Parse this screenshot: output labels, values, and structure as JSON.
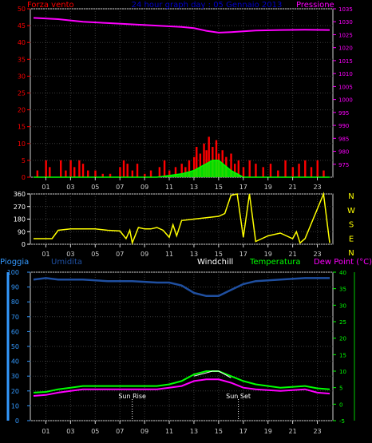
{
  "chart_data": [
    {
      "type": "bar",
      "title": "24 hour graph day : 05 Gennaio 2013",
      "left_axis_label": "Forza vento",
      "right_axis_label": "Pressione",
      "left_ylim": [
        0,
        50
      ],
      "left_ticks": [
        0,
        5,
        10,
        15,
        20,
        25,
        30,
        35,
        40,
        45,
        50
      ],
      "right_ylim": [
        970,
        1035
      ],
      "right_ticks": [
        975,
        980,
        985,
        990,
        995,
        1000,
        1005,
        1010,
        1015,
        1020,
        1025,
        1030,
        1035
      ],
      "x_tick_labels": [
        "01",
        "03",
        "05",
        "07",
        "09",
        "11",
        "13",
        "15",
        "17",
        "19",
        "21",
        "23"
      ],
      "x_tick_hours": [
        1,
        3,
        5,
        7,
        9,
        11,
        13,
        15,
        17,
        19,
        21,
        23
      ],
      "grid": true,
      "colors": {
        "wind": "#ff0000",
        "gust": "#00ff00",
        "pressure": "#ff00ff",
        "title": "#0000cc"
      },
      "series": [
        {
          "name": "Pressione",
          "type": "line",
          "axis": "right",
          "x": [
            0,
            2,
            4,
            6,
            8,
            10,
            12,
            13,
            14,
            15,
            16,
            17,
            18,
            20,
            22,
            24
          ],
          "y": [
            1031.5,
            1031,
            1030,
            1029.5,
            1029,
            1028.5,
            1028,
            1027.5,
            1026.5,
            1025.8,
            1026,
            1026.3,
            1026.6,
            1026.8,
            1026.9,
            1026.8
          ]
        },
        {
          "type": "bar",
          "axis": "left",
          "x": [
            0.3,
            1.0,
            1.3,
            2.2,
            2.6,
            3.0,
            3.3,
            3.7,
            4.0,
            4.4,
            5.0,
            5.6,
            6.2,
            7.0,
            7.3,
            7.6,
            8.0,
            8.4,
            9.0,
            9.5,
            10.2,
            10.6,
            11.0,
            11.5,
            12.0,
            12.3,
            12.6,
            13.0,
            13.2,
            13.5,
            13.8,
            14.0,
            14.2,
            14.5,
            14.8,
            15.0,
            15.3,
            15.6,
            16.0,
            16.3,
            16.6,
            17.0,
            17.5,
            18.0,
            18.6,
            19.2,
            19.8,
            20.4,
            21.0,
            21.5,
            22.0,
            22.5,
            23.0,
            23.5
          ],
          "y": [
            2,
            5,
            3,
            5,
            2,
            5,
            3,
            5,
            4,
            2,
            2,
            1,
            1,
            3,
            5,
            4,
            2,
            4,
            1,
            2,
            3,
            5,
            2,
            3,
            4,
            3,
            5,
            6,
            9,
            7,
            10,
            8,
            12,
            9,
            11,
            7,
            8,
            6,
            7,
            4,
            5,
            3,
            5,
            4,
            3,
            4,
            2,
            5,
            3,
            4,
            5,
            3,
            5,
            2
          ]
        },
        {
          "type": "line",
          "axis": "left",
          "x": [
            0,
            10,
            11,
            12,
            13,
            13.5,
            14,
            14.5,
            15,
            15.5,
            16,
            16.5,
            17,
            24
          ],
          "y": [
            0,
            0,
            0.5,
            1,
            2,
            3,
            4,
            5,
            5,
            3.5,
            2,
            1,
            0,
            0
          ]
        }
      ]
    },
    {
      "type": "line",
      "ylim": [
        0,
        360
      ],
      "y_ticks": [
        0,
        90,
        180,
        270,
        360
      ],
      "compass_labels": [
        "N",
        "W",
        "S",
        "E",
        "N"
      ],
      "colors": {
        "direction": "#ffff00"
      },
      "series": [
        {
          "type": "line",
          "x": [
            0,
            1.5,
            2.0,
            3.0,
            4.0,
            5.0,
            6.0,
            7.0,
            7.5,
            7.8,
            8.0,
            8.5,
            9.0,
            9.5,
            10.0,
            10.5,
            11.0,
            11.3,
            11.6,
            12.0,
            13.0,
            14.0,
            15.0,
            15.5,
            16.0,
            16.5,
            17.0,
            17.5,
            18.0,
            18.5,
            19.0,
            20.0,
            21.0,
            21.3,
            21.6,
            22.0,
            23.5,
            24.0
          ],
          "y": [
            40,
            40,
            100,
            110,
            110,
            110,
            100,
            95,
            40,
            100,
            10,
            120,
            110,
            110,
            120,
            100,
            50,
            140,
            60,
            170,
            180,
            190,
            200,
            220,
            350,
            360,
            50,
            360,
            20,
            40,
            60,
            80,
            40,
            90,
            10,
            40,
            360,
            10
          ]
        }
      ]
    },
    {
      "type": "line",
      "left_axis_label": "Pioggia",
      "label_umidita": "Umidita",
      "label_windchill": "Windchill",
      "label_temperatura": "Temperatura",
      "label_dewpoint": "Dew Point (°C)",
      "left_ylim": [
        0,
        100
      ],
      "left_ticks": [
        0,
        10,
        20,
        30,
        40,
        50,
        60,
        70,
        80,
        90,
        100
      ],
      "right_ylim": [
        -5,
        40
      ],
      "right_ticks": [
        -5,
        0,
        5,
        10,
        15,
        20,
        25,
        30,
        35,
        40
      ],
      "sun_rise_hour": 8.0,
      "sun_set_hour": 16.6,
      "sun_rise_label": "Sun Rise",
      "sun_set_label": "Sun Set",
      "colors": {
        "umidita": "#1f4fa0",
        "temperatura": "#00ff00",
        "dewpoint": "#ff00ff",
        "pioggia": "#3399ff",
        "windchill": "#ffffff"
      },
      "series": [
        {
          "name": "Umidita",
          "axis": "left",
          "x": [
            0,
            1,
            2,
            4,
            6,
            8,
            10,
            11,
            12,
            13,
            14,
            15,
            16,
            17,
            18,
            20,
            22,
            24
          ],
          "y": [
            95,
            96,
            95,
            95,
            94,
            94,
            93,
            93,
            91,
            86,
            84,
            84,
            88,
            92,
            94,
            95,
            96,
            96
          ]
        },
        {
          "name": "Temperatura",
          "axis": "right",
          "x": [
            0,
            1,
            2,
            3,
            4,
            6,
            8,
            10,
            11,
            12,
            13,
            14,
            15,
            16,
            17,
            18,
            20,
            22,
            23,
            24
          ],
          "y": [
            3.5,
            3.7,
            4.5,
            5,
            5.5,
            5.5,
            5.5,
            5.5,
            6,
            7,
            9,
            10,
            10,
            8.5,
            7,
            6,
            5,
            5.5,
            4.8,
            4.5
          ]
        },
        {
          "name": "Windchill",
          "axis": "right",
          "x": [
            13,
            13.5,
            14,
            14.5,
            15,
            15.5,
            16
          ],
          "y": [
            8.5,
            9,
            9.5,
            10,
            10,
            9,
            8
          ]
        },
        {
          "name": "Dew Point (°C)",
          "axis": "right",
          "x": [
            0,
            1,
            2,
            3,
            4,
            6,
            8,
            10,
            11,
            12,
            13,
            14,
            15,
            16,
            17,
            18,
            20,
            22,
            23,
            24
          ],
          "y": [
            2.5,
            2.8,
            3.5,
            4,
            4.5,
            4.5,
            4.5,
            4.5,
            5,
            5.5,
            7,
            7.5,
            7.5,
            6.5,
            5,
            4.5,
            4,
            4.5,
            3.5,
            3.2
          ]
        }
      ]
    }
  ]
}
